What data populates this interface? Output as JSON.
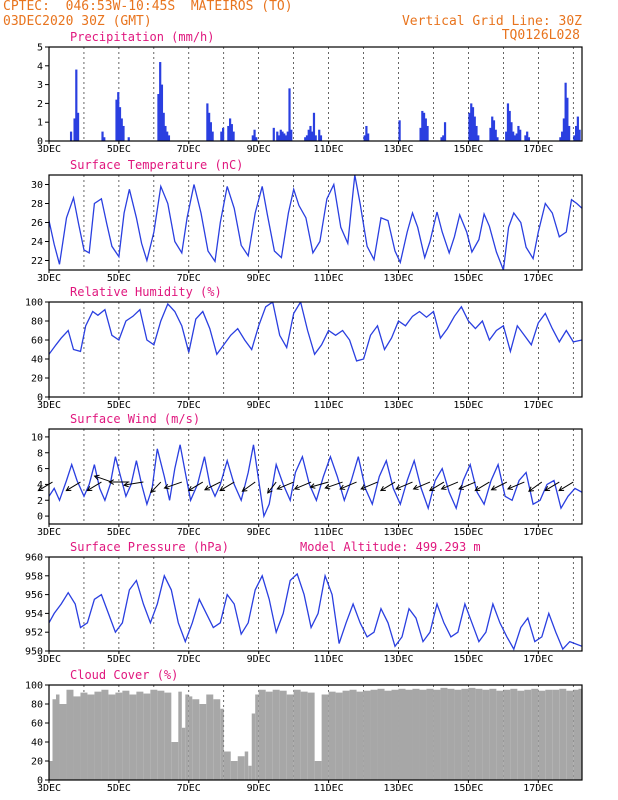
{
  "header": {
    "line1": "CPTEC:  046:53W-10:45S  MATEIROS (TO)",
    "line2": "03DEC2020 30Z (GMT)",
    "grid_line": "Vertical Grid Line: 30Z",
    "model_code": "TQ0126L028"
  },
  "colors": {
    "series": "#2a3fe0",
    "bars": "#2a3fe0",
    "cloud": "#a7a7a7",
    "title": "#e0177e",
    "header": "#e8741e"
  },
  "chart_data": [
    {
      "type": "bar",
      "title": "Precipitation (mm/h)",
      "x_labels": [
        "3DEC",
        "5DEC",
        "7DEC",
        "9DEC",
        "11DEC",
        "13DEC",
        "15DEC",
        "17DEC"
      ],
      "x_range": [
        3,
        18.25
      ],
      "ylim": [
        0,
        5
      ],
      "y_ticks": [
        0,
        1,
        2,
        3,
        4,
        5
      ],
      "grid": true,
      "x": [
        3.6,
        3.7,
        3.75,
        3.8,
        4.5,
        4.55,
        4.9,
        4.95,
        5.0,
        5.05,
        5.1,
        5.25,
        6.1,
        6.15,
        6.2,
        6.25,
        6.3,
        6.35,
        6.4,
        7.5,
        7.55,
        7.6,
        7.65,
        7.9,
        7.95,
        8.1,
        8.15,
        8.2,
        8.25,
        8.8,
        8.85,
        8.9,
        9.4,
        9.5,
        9.55,
        9.6,
        9.65,
        9.7,
        9.75,
        9.8,
        9.85,
        9.9,
        10.3,
        10.35,
        10.4,
        10.45,
        10.5,
        10.55,
        10.6,
        10.7,
        10.75,
        12.0,
        12.05,
        12.1,
        13.0,
        13.6,
        13.65,
        13.7,
        13.75,
        13.8,
        14.2,
        14.25,
        14.3,
        15.0,
        15.05,
        15.1,
        15.15,
        15.2,
        15.25,
        15.6,
        15.65,
        15.7,
        15.75,
        15.8,
        16.05,
        16.1,
        16.15,
        16.2,
        16.25,
        16.3,
        16.35,
        16.4,
        16.45,
        16.6,
        16.65,
        16.7,
        17.6,
        17.65,
        17.7,
        17.75,
        17.8,
        17.85,
        18.0,
        18.05,
        18.1,
        18.15
      ],
      "values": [
        0.5,
        1.2,
        3.8,
        1.5,
        0.5,
        0.2,
        2.2,
        2.6,
        1.8,
        1.2,
        0.8,
        0.2,
        2.5,
        4.2,
        3.0,
        1.5,
        0.8,
        0.5,
        0.3,
        2.0,
        1.5,
        1.0,
        0.5,
        0.5,
        0.7,
        0.8,
        1.2,
        0.9,
        0.5,
        0.3,
        0.6,
        0.2,
        0.7,
        0.5,
        0.3,
        0.6,
        0.5,
        0.4,
        0.3,
        0.5,
        2.8,
        0.6,
        0.2,
        0.3,
        0.6,
        0.8,
        0.5,
        1.5,
        0.3,
        0.6,
        0.3,
        0.3,
        0.8,
        0.4,
        1.1,
        0.7,
        1.6,
        1.5,
        1.2,
        0.8,
        0.2,
        0.3,
        1.0,
        1.5,
        2.0,
        1.8,
        1.3,
        0.8,
        0.3,
        0.7,
        1.3,
        1.1,
        0.6,
        0.2,
        0.5,
        2.0,
        1.6,
        1.0,
        0.5,
        0.3,
        0.4,
        0.8,
        0.6,
        0.3,
        0.5,
        0.2,
        0.2,
        0.5,
        1.2,
        3.1,
        2.3,
        0.8,
        0.3,
        0.8,
        1.3,
        0.6
      ]
    },
    {
      "type": "line",
      "title": "Surface Temperature (nC)",
      "x_labels": [
        "3DEC",
        "5DEC",
        "7DEC",
        "9DEC",
        "11DEC",
        "13DEC",
        "15DEC",
        "17DEC"
      ],
      "x_range": [
        3,
        18.25
      ],
      "ylim": [
        21,
        31
      ],
      "y_ticks": [
        22,
        24,
        26,
        28,
        30
      ],
      "grid": true,
      "x": [
        3.0,
        3.15,
        3.3,
        3.5,
        3.7,
        3.85,
        4.0,
        4.15,
        4.3,
        4.5,
        4.65,
        4.8,
        5.0,
        5.15,
        5.3,
        5.5,
        5.65,
        5.8,
        6.0,
        6.2,
        6.4,
        6.6,
        6.8,
        6.95,
        7.15,
        7.35,
        7.55,
        7.75,
        7.9,
        8.1,
        8.3,
        8.5,
        8.7,
        8.9,
        9.1,
        9.25,
        9.45,
        9.65,
        9.85,
        10.0,
        10.15,
        10.35,
        10.55,
        10.75,
        10.95,
        11.15,
        11.35,
        11.55,
        11.75,
        11.9,
        12.1,
        12.3,
        12.5,
        12.7,
        12.9,
        13.05,
        13.25,
        13.4,
        13.55,
        13.75,
        13.9,
        14.1,
        14.25,
        14.45,
        14.6,
        14.75,
        14.95,
        15.1,
        15.3,
        15.45,
        15.6,
        15.8,
        16.0,
        16.15,
        16.3,
        16.5,
        16.65,
        16.85,
        17.0,
        17.2,
        17.4,
        17.6,
        17.8,
        17.95,
        18.1,
        18.25
      ],
      "values": [
        26.2,
        23.7,
        21.6,
        26.5,
        28.6,
        25.8,
        23.1,
        22.8,
        28.0,
        28.5,
        25.9,
        23.5,
        22.4,
        27.0,
        29.5,
        26.5,
        23.8,
        22.0,
        25.0,
        29.8,
        28.0,
        24.0,
        22.8,
        26.5,
        30.0,
        27.0,
        23.0,
        21.9,
        26.0,
        29.8,
        27.5,
        23.6,
        22.5,
        27.0,
        29.8,
        26.8,
        23.0,
        22.3,
        27.0,
        29.5,
        27.8,
        26.5,
        22.8,
        24.0,
        28.5,
        30.0,
        25.5,
        23.8,
        31.0,
        28.0,
        23.5,
        22.1,
        26.5,
        26.2,
        23.0,
        21.8,
        25.0,
        27.0,
        25.5,
        22.3,
        24.0,
        27.1,
        25.0,
        22.8,
        24.5,
        26.8,
        25.0,
        22.9,
        24.2,
        26.9,
        25.6,
        22.9,
        21.0,
        25.5,
        27.0,
        26.0,
        23.4,
        22.2,
        25.0,
        28.0,
        27.0,
        24.5,
        25.0,
        28.4,
        28.0,
        27.5
      ]
    },
    {
      "type": "line",
      "title": "Relative Humidity (%)",
      "x_labels": [
        "3DEC",
        "5DEC",
        "7DEC",
        "9DEC",
        "11DEC",
        "13DEC",
        "15DEC",
        "17DEC"
      ],
      "x_range": [
        3,
        18.25
      ],
      "ylim": [
        0,
        100
      ],
      "y_ticks": [
        0,
        20,
        40,
        60,
        80,
        100
      ],
      "grid": true,
      "x": [
        3.0,
        3.2,
        3.35,
        3.55,
        3.7,
        3.9,
        4.05,
        4.25,
        4.4,
        4.6,
        4.8,
        5.0,
        5.2,
        5.4,
        5.6,
        5.8,
        6.0,
        6.2,
        6.4,
        6.6,
        6.8,
        7.0,
        7.2,
        7.4,
        7.6,
        7.8,
        8.0,
        8.2,
        8.4,
        8.6,
        8.8,
        9.0,
        9.2,
        9.4,
        9.6,
        9.8,
        10.0,
        10.2,
        10.4,
        10.6,
        10.8,
        11.0,
        11.2,
        11.4,
        11.6,
        11.8,
        12.0,
        12.2,
        12.4,
        12.6,
        12.8,
        13.0,
        13.2,
        13.4,
        13.6,
        13.8,
        14.0,
        14.2,
        14.4,
        14.6,
        14.8,
        15.0,
        15.2,
        15.4,
        15.6,
        15.8,
        16.0,
        16.2,
        16.4,
        16.6,
        16.8,
        17.0,
        17.2,
        17.4,
        17.6,
        17.8,
        18.0,
        18.25
      ],
      "values": [
        45,
        55,
        62,
        70,
        50,
        48,
        75,
        90,
        86,
        92,
        65,
        60,
        80,
        85,
        92,
        60,
        55,
        80,
        98,
        90,
        75,
        47,
        82,
        90,
        72,
        45,
        55,
        65,
        72,
        60,
        50,
        75,
        95,
        100,
        65,
        52,
        88,
        100,
        70,
        45,
        55,
        70,
        65,
        70,
        60,
        38,
        40,
        65,
        75,
        50,
        62,
        80,
        75,
        85,
        90,
        84,
        90,
        62,
        72,
        85,
        95,
        80,
        72,
        80,
        60,
        70,
        75,
        48,
        75,
        65,
        55,
        78,
        88,
        72,
        58,
        70,
        58,
        60
      ]
    },
    {
      "type": "line",
      "title": "Surface Wind (m/s)",
      "x_labels": [
        "3DEC",
        "5DEC",
        "7DEC",
        "9DEC",
        "11DEC",
        "13DEC",
        "15DEC",
        "17DEC"
      ],
      "x_range": [
        3,
        18.25
      ],
      "ylim": [
        -1,
        11
      ],
      "y_ticks": [
        0,
        2,
        4,
        6,
        8,
        10
      ],
      "grid": true,
      "x": [
        3.0,
        3.15,
        3.3,
        3.5,
        3.65,
        3.8,
        4.0,
        4.15,
        4.3,
        4.45,
        4.6,
        4.75,
        4.9,
        5.05,
        5.2,
        5.35,
        5.5,
        5.65,
        5.8,
        5.95,
        6.1,
        6.3,
        6.45,
        6.6,
        6.75,
        6.9,
        7.05,
        7.25,
        7.45,
        7.6,
        7.75,
        7.9,
        8.1,
        8.3,
        8.5,
        8.7,
        8.85,
        9.0,
        9.15,
        9.3,
        9.5,
        9.7,
        9.9,
        10.05,
        10.25,
        10.45,
        10.65,
        10.85,
        11.05,
        11.25,
        11.45,
        11.65,
        11.85,
        12.05,
        12.25,
        12.45,
        12.65,
        12.85,
        13.05,
        13.25,
        13.45,
        13.65,
        13.85,
        14.05,
        14.25,
        14.45,
        14.65,
        14.85,
        15.05,
        15.25,
        15.45,
        15.65,
        15.85,
        16.05,
        16.25,
        16.45,
        16.65,
        16.85,
        17.05,
        17.25,
        17.45,
        17.65,
        17.85,
        18.05,
        18.25
      ],
      "values": [
        2.5,
        3.5,
        2.0,
        4.5,
        6.5,
        4.5,
        2.5,
        4.0,
        6.5,
        3.5,
        2.0,
        4.0,
        7.5,
        5.0,
        2.5,
        4.0,
        7.0,
        4.0,
        1.5,
        3.5,
        8.5,
        5.0,
        2.0,
        6.0,
        9.0,
        5.5,
        2.0,
        4.0,
        7.5,
        4.0,
        2.5,
        4.0,
        7.0,
        4.0,
        2.0,
        5.5,
        9.0,
        4.5,
        0.0,
        1.5,
        6.5,
        4.0,
        2.0,
        5.5,
        7.5,
        4.0,
        2.0,
        5.0,
        7.5,
        5.0,
        2.0,
        4.5,
        7.5,
        3.5,
        1.5,
        5.0,
        7.0,
        3.5,
        1.5,
        4.5,
        7.0,
        3.5,
        1.0,
        4.5,
        6.0,
        3.0,
        1.0,
        4.5,
        6.5,
        3.0,
        1.5,
        4.5,
        6.5,
        2.5,
        2.0,
        4.5,
        5.5,
        1.5,
        2.0,
        4.0,
        4.5,
        1.0,
        2.5,
        3.5,
        3.0
      ],
      "arrows": [
        {
          "x": 3.1,
          "dir": 225
        },
        {
          "x": 3.9,
          "dir": 225
        },
        {
          "x": 4.5,
          "dir": 225
        },
        {
          "x": 4.8,
          "dir": 150
        },
        {
          "x": 5.3,
          "dir": 180
        },
        {
          "x": 5.7,
          "dir": 195
        },
        {
          "x": 6.2,
          "dir": 240
        },
        {
          "x": 6.8,
          "dir": 210
        },
        {
          "x": 7.4,
          "dir": 225
        },
        {
          "x": 7.9,
          "dir": 220
        },
        {
          "x": 8.3,
          "dir": 225
        },
        {
          "x": 8.9,
          "dir": 230
        },
        {
          "x": 9.5,
          "dir": 245
        },
        {
          "x": 10.0,
          "dir": 215
        },
        {
          "x": 10.5,
          "dir": 215
        },
        {
          "x": 11.0,
          "dir": 205
        },
        {
          "x": 11.4,
          "dir": 210
        },
        {
          "x": 11.8,
          "dir": 215
        },
        {
          "x": 12.4,
          "dir": 215
        },
        {
          "x": 12.9,
          "dir": 225
        },
        {
          "x": 13.4,
          "dir": 215
        },
        {
          "x": 13.9,
          "dir": 215
        },
        {
          "x": 14.3,
          "dir": 225
        },
        {
          "x": 14.7,
          "dir": 215
        },
        {
          "x": 15.2,
          "dir": 215
        },
        {
          "x": 15.6,
          "dir": 225
        },
        {
          "x": 16.1,
          "dir": 220
        },
        {
          "x": 16.6,
          "dir": 215
        },
        {
          "x": 17.1,
          "dir": 230
        },
        {
          "x": 17.6,
          "dir": 225
        },
        {
          "x": 18.0,
          "dir": 225
        }
      ]
    },
    {
      "type": "line",
      "title": "Surface Pressure (hPa)",
      "annotation": "Model Altitude: 499.293 m",
      "x_labels": [
        "3DEC",
        "5DEC",
        "7DEC",
        "9DEC",
        "11DEC",
        "13DEC",
        "15DEC",
        "17DEC"
      ],
      "x_range": [
        3,
        18.25
      ],
      "ylim": [
        950,
        960
      ],
      "y_ticks": [
        950,
        952,
        954,
        956,
        958,
        960
      ],
      "grid": true,
      "x": [
        3.0,
        3.15,
        3.35,
        3.55,
        3.75,
        3.9,
        4.1,
        4.3,
        4.5,
        4.7,
        4.9,
        5.1,
        5.3,
        5.5,
        5.7,
        5.9,
        6.1,
        6.3,
        6.5,
        6.7,
        6.9,
        7.1,
        7.3,
        7.5,
        7.7,
        7.9,
        8.1,
        8.3,
        8.5,
        8.7,
        8.9,
        9.1,
        9.3,
        9.5,
        9.7,
        9.9,
        10.1,
        10.3,
        10.5,
        10.7,
        10.9,
        11.1,
        11.3,
        11.5,
        11.7,
        11.9,
        12.1,
        12.3,
        12.5,
        12.7,
        12.9,
        13.1,
        13.3,
        13.5,
        13.7,
        13.9,
        14.1,
        14.3,
        14.5,
        14.7,
        14.9,
        15.1,
        15.3,
        15.5,
        15.7,
        15.9,
        16.1,
        16.3,
        16.5,
        16.7,
        16.9,
        17.1,
        17.3,
        17.5,
        17.7,
        17.9,
        18.25
      ],
      "values": [
        953.0,
        954.0,
        955.0,
        956.2,
        955.0,
        952.5,
        953.0,
        955.5,
        956.0,
        954.0,
        952.0,
        953.0,
        956.5,
        957.5,
        955.0,
        953.0,
        955.0,
        958.0,
        956.5,
        953.0,
        951.0,
        953.0,
        955.5,
        954.0,
        952.5,
        953.0,
        956.0,
        955.0,
        951.8,
        953.0,
        956.5,
        958.0,
        955.5,
        952.0,
        954.0,
        957.5,
        958.2,
        956.0,
        952.5,
        954.0,
        958.0,
        956.0,
        950.8,
        953.0,
        955.0,
        953.0,
        951.5,
        952.0,
        954.5,
        953.0,
        950.5,
        951.5,
        954.5,
        953.5,
        951.0,
        952.0,
        955.0,
        953.0,
        951.5,
        952.0,
        955.0,
        953.0,
        951.0,
        952.0,
        955.0,
        953.0,
        951.5,
        950.2,
        952.5,
        953.5,
        951.0,
        951.5,
        954.0,
        952.0,
        950.2,
        951.0,
        950.5
      ]
    },
    {
      "type": "bar",
      "title": "Cloud Cover (%)",
      "x_labels": [
        "3DEC",
        "5DEC",
        "7DEC",
        "9DEC",
        "11DEC",
        "13DEC",
        "15DEC",
        "17DEC"
      ],
      "x_range": [
        3,
        18.25
      ],
      "ylim": [
        0,
        100
      ],
      "y_ticks": [
        0,
        20,
        40,
        60,
        80,
        100
      ],
      "grid": true,
      "x": [
        3.0,
        3.1,
        3.2,
        3.3,
        3.5,
        3.7,
        3.9,
        4.1,
        4.3,
        4.5,
        4.7,
        4.9,
        5.1,
        5.3,
        5.5,
        5.7,
        5.9,
        6.1,
        6.3,
        6.5,
        6.7,
        6.8,
        6.9,
        7.0,
        7.1,
        7.3,
        7.5,
        7.7,
        7.9,
        8.0,
        8.2,
        8.4,
        8.6,
        8.7,
        8.8,
        8.9,
        9.0,
        9.2,
        9.4,
        9.6,
        9.8,
        10.0,
        10.2,
        10.4,
        10.6,
        10.8,
        11.0,
        11.2,
        11.4,
        11.6,
        11.8,
        12.0,
        12.2,
        12.4,
        12.6,
        12.8,
        13.0,
        13.2,
        13.4,
        13.6,
        13.8,
        14.0,
        14.2,
        14.4,
        14.6,
        14.8,
        15.0,
        15.2,
        15.4,
        15.6,
        15.8,
        16.0,
        16.2,
        16.4,
        16.6,
        16.8,
        17.0,
        17.2,
        17.4,
        17.6,
        17.8,
        18.0,
        18.15
      ],
      "values": [
        20,
        85,
        90,
        80,
        95,
        88,
        92,
        90,
        93,
        95,
        90,
        92,
        94,
        90,
        93,
        91,
        95,
        94,
        92,
        40,
        93,
        55,
        90,
        88,
        85,
        80,
        90,
        85,
        75,
        30,
        20,
        25,
        30,
        15,
        70,
        90,
        95,
        93,
        95,
        94,
        90,
        95,
        93,
        92,
        20,
        90,
        93,
        92,
        94,
        95,
        93,
        94,
        95,
        96,
        94,
        95,
        96,
        95,
        96,
        95,
        96,
        95,
        97,
        96,
        95,
        96,
        97,
        96,
        95,
        96,
        94,
        95,
        96,
        94,
        95,
        96,
        94,
        95,
        95,
        96,
        94,
        95,
        96
      ]
    }
  ]
}
